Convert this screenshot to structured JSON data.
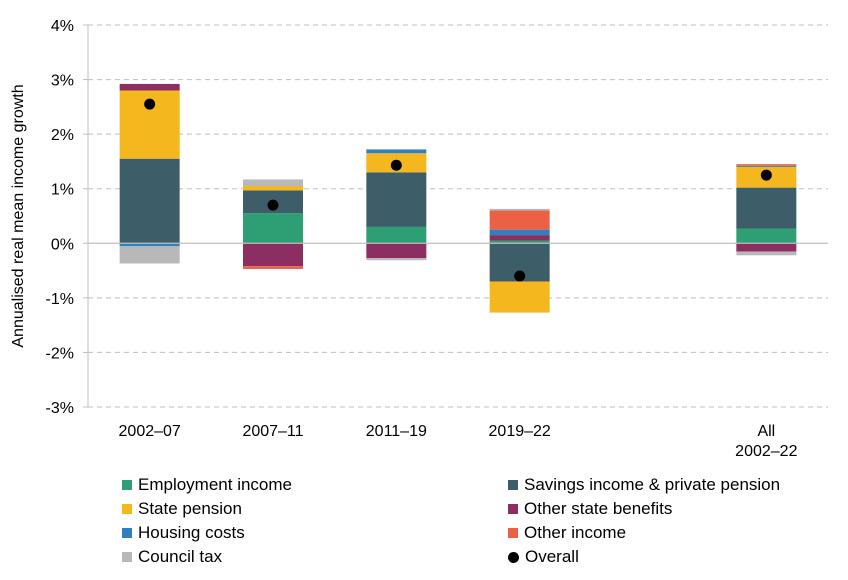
{
  "chart_data": {
    "type": "bar",
    "stacked": true,
    "title": "",
    "xlabel": "",
    "ylabel": "Annualised real mean income growth",
    "ylim": [
      -3,
      4
    ],
    "yticks": [
      -3,
      -2,
      -1,
      0,
      1,
      2,
      3,
      4
    ],
    "ytick_labels": [
      "-3%",
      "-2%",
      "-1%",
      "0%",
      "1%",
      "2%",
      "3%",
      "4%"
    ],
    "categories": [
      "2002–07",
      "2007–11",
      "2011–19",
      "2019–22",
      "All 2002–22"
    ],
    "category_label_lines": [
      [
        "2002–07"
      ],
      [
        "2007–11"
      ],
      [
        "2011–19"
      ],
      [
        "2019–22"
      ],
      [
        "All",
        "2002–22"
      ]
    ],
    "series": [
      {
        "name": "Employment income",
        "color": "#2e9e74",
        "values": [
          0.0,
          0.55,
          0.3,
          0.05,
          0.27
        ]
      },
      {
        "name": "Savings income & private pension",
        "color": "#3d5e69",
        "values": [
          1.55,
          0.42,
          1.0,
          -0.7,
          0.75
        ]
      },
      {
        "name": "State pension",
        "color": "#f5b71e",
        "values": [
          1.25,
          0.08,
          0.35,
          -0.57,
          0.38
        ]
      },
      {
        "name": "Other state benefits",
        "color": "#8d2e62",
        "values": [
          0.12,
          -0.42,
          -0.27,
          0.1,
          -0.15
        ]
      },
      {
        "name": "Housing costs",
        "color": "#2f7fc1",
        "values": [
          -0.05,
          0.0,
          0.07,
          0.1,
          0.02
        ]
      },
      {
        "name": "Other income",
        "color": "#ec6144",
        "values": [
          0.0,
          -0.05,
          0.0,
          0.35,
          0.03
        ]
      },
      {
        "name": "Council tax",
        "color": "#b8b8b8",
        "values": [
          -0.32,
          0.12,
          -0.04,
          0.03,
          -0.07
        ]
      }
    ],
    "overall": {
      "name": "Overall",
      "color": "#000000",
      "values": [
        2.55,
        0.7,
        1.43,
        -0.6,
        1.25
      ]
    },
    "legend_position": "bottom",
    "grid": "dashed horizontal"
  },
  "legend": {
    "items": [
      {
        "label": "Employment income",
        "color": "#2e9e74",
        "marker": "square"
      },
      {
        "label": "Savings income & private pension",
        "color": "#3d5e69",
        "marker": "square"
      },
      {
        "label": "State pension",
        "color": "#f5b71e",
        "marker": "square"
      },
      {
        "label": "Other state benefits",
        "color": "#8d2e62",
        "marker": "square"
      },
      {
        "label": "Housing costs",
        "color": "#2f7fc1",
        "marker": "square"
      },
      {
        "label": "Other income",
        "color": "#ec6144",
        "marker": "square"
      },
      {
        "label": "Council tax",
        "color": "#b8b8b8",
        "marker": "square"
      },
      {
        "label": "Overall",
        "color": "#000000",
        "marker": "dot"
      }
    ]
  }
}
